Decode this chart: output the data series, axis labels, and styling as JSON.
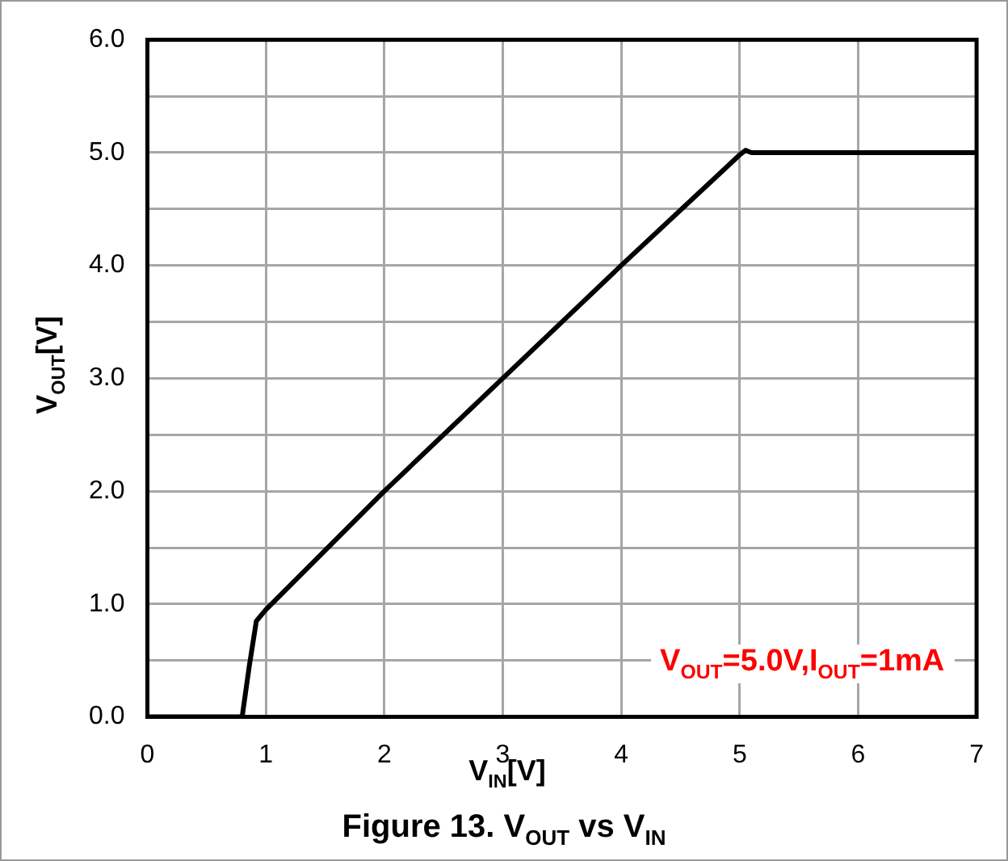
{
  "chart_data": {
    "type": "line",
    "title": "Figure 13.  V$_{OUT}$ vs V$_{IN}$",
    "xlabel": "V$_{IN}$[V]",
    "ylabel": "V$_{OUT}$[V]",
    "annotations": [
      "V$_{OUT}$=5.0V,I$_{OUT}$=1mA"
    ],
    "series": [
      {
        "color": "#000000",
        "x": [
          0,
          0.5,
          0.8,
          0.86,
          0.92,
          1.0,
          2.0,
          3.0,
          4.0,
          5.0,
          5.05,
          5.1,
          6.0,
          7.0
        ],
        "values": [
          0,
          0,
          0,
          0.45,
          0.85,
          0.95,
          2.0,
          3.0,
          4.0,
          4.98,
          5.02,
          5.0,
          5.0,
          5.0
        ]
      }
    ],
    "xlim": [
      0,
      7
    ],
    "xticks": [
      0,
      1,
      2,
      3,
      4,
      5,
      6,
      7
    ],
    "ylim": [
      0,
      6
    ],
    "yticks": [
      {
        "value": 0,
        "label": "0.0"
      },
      {
        "value": 0.5,
        "label": null
      },
      {
        "value": 1,
        "label": "1.0"
      },
      {
        "value": 1.5,
        "label": null
      },
      {
        "value": 2,
        "label": "2.0"
      },
      {
        "value": 2.5,
        "label": null
      },
      {
        "value": 3,
        "label": "3.0"
      },
      {
        "value": 3.5,
        "label": null
      },
      {
        "value": 4,
        "label": "4.0"
      },
      {
        "value": 4.5,
        "label": null
      },
      {
        "value": 5,
        "label": "5.0"
      },
      {
        "value": 5.5,
        "label": null
      },
      {
        "value": 6,
        "label": "6.0"
      }
    ],
    "grid": true,
    "legend": false,
    "marker": "none",
    "line_style": "solid"
  }
}
